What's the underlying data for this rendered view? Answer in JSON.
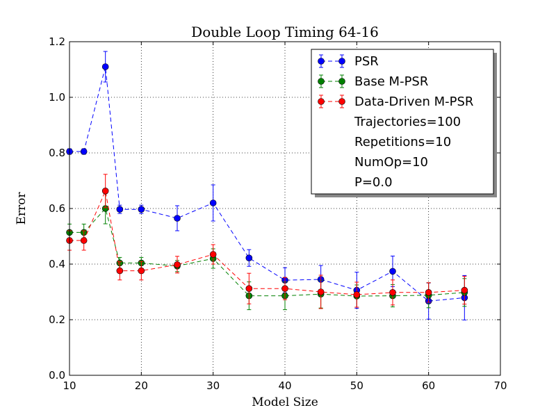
{
  "chart_data": {
    "type": "line",
    "title": "Double Loop Timing 64-16",
    "xlabel": "Model Size",
    "ylabel": "Error",
    "xlim": [
      10,
      70
    ],
    "ylim": [
      0.0,
      1.2
    ],
    "xticks": [
      "10",
      "20",
      "30",
      "40",
      "50",
      "60",
      "70"
    ],
    "yticks": [
      "0.0",
      "0.2",
      "0.4",
      "0.6",
      "0.8",
      "1.0",
      "1.2"
    ],
    "grid": true,
    "legend_position": "top-right",
    "x": [
      10,
      12,
      15,
      17,
      20,
      25,
      30,
      35,
      40,
      45,
      50,
      55,
      60,
      65
    ],
    "series": [
      {
        "name": "PSR",
        "color": "#0000ff",
        "values": [
          0.805,
          0.805,
          1.11,
          0.597,
          0.597,
          0.565,
          0.62,
          0.422,
          0.342,
          0.345,
          0.306,
          0.374,
          0.267,
          0.279
        ],
        "errors": [
          0.01,
          0.01,
          0.055,
          0.015,
          0.015,
          0.045,
          0.065,
          0.03,
          0.045,
          0.05,
          0.065,
          0.055,
          0.065,
          0.08
        ]
      },
      {
        "name": "Base M-PSR",
        "color": "#008000",
        "values": [
          0.514,
          0.514,
          0.6,
          0.404,
          0.404,
          0.393,
          0.42,
          0.286,
          0.286,
          0.292,
          0.285,
          0.286,
          0.288,
          0.298
        ],
        "errors": [
          0.03,
          0.03,
          0.055,
          0.02,
          0.02,
          0.02,
          0.035,
          0.05,
          0.05,
          0.05,
          0.04,
          0.04,
          0.045,
          0.05
        ]
      },
      {
        "name": "Data-Driven M-PSR",
        "color": "#ff0000",
        "values": [
          0.485,
          0.485,
          0.663,
          0.376,
          0.376,
          0.398,
          0.435,
          0.312,
          0.312,
          0.3,
          0.29,
          0.298,
          0.298,
          0.306
        ],
        "errors": [
          0.035,
          0.035,
          0.06,
          0.033,
          0.033,
          0.03,
          0.035,
          0.055,
          0.04,
          0.06,
          0.045,
          0.045,
          0.035,
          0.05
        ]
      }
    ],
    "legend_notes": [
      "Trajectories=100",
      "Repetitions=10",
      "NumOp=10",
      "P=0.0"
    ]
  }
}
